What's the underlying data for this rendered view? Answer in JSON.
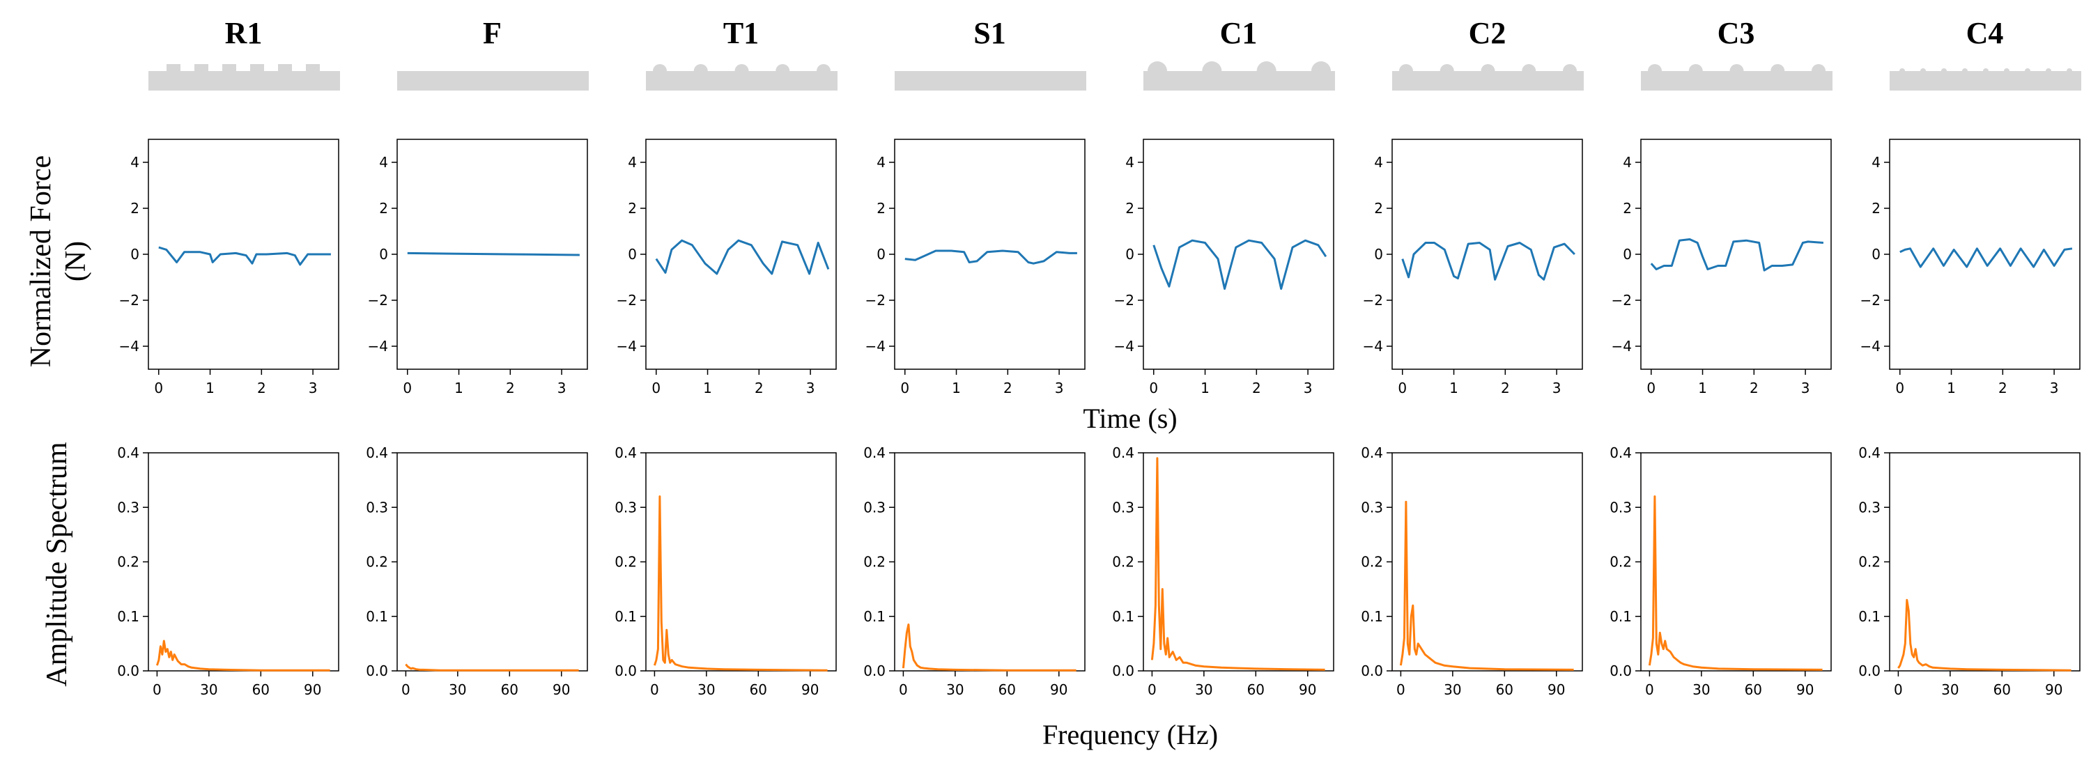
{
  "figure": {
    "time_label": "Time (s)",
    "freq_label": "Frequency (Hz)",
    "force_label_line1": "Normalized Force",
    "force_label_line2": "(N)",
    "amp_label": "Amplitude Spectrum"
  },
  "colors": {
    "force": "#1f77b4",
    "spectrum": "#ff7f0e",
    "profile": "#d6d6d6"
  },
  "force_axes": {
    "xlim": [
      -0.2,
      3.5
    ],
    "ylim": [
      -5,
      5
    ],
    "xticks": [
      0,
      1,
      2,
      3
    ],
    "yticks": [
      4,
      2,
      0,
      -2,
      -4
    ],
    "xtick_labels": [
      "0",
      "1",
      "2",
      "3"
    ],
    "ytick_labels": [
      "4",
      "2",
      "0",
      "−2",
      "−4"
    ]
  },
  "spectrum_axes": {
    "xlim": [
      -5,
      105
    ],
    "ylim": [
      0,
      0.4
    ],
    "xticks": [
      0,
      30,
      60,
      90
    ],
    "yticks": [
      0.4,
      0.3,
      0.2,
      0.1,
      0.0
    ],
    "xtick_labels": [
      "0",
      "30",
      "60",
      "90"
    ],
    "ytick_labels": [
      "0.4",
      "0.3",
      "0.2",
      "0.1",
      "0.0"
    ]
  },
  "chart_data": [
    {
      "type": "line",
      "label": "R1",
      "profile": "rect",
      "force": {
        "t": [
          0,
          0.15,
          0.35,
          0.5,
          0.8,
          1.0,
          1.05,
          1.2,
          1.5,
          1.7,
          1.82,
          1.9,
          2.1,
          2.5,
          2.65,
          2.75,
          2.9,
          3.1,
          3.35
        ],
        "y": [
          0.3,
          0.2,
          -0.35,
          0.1,
          0.1,
          0,
          -0.35,
          0,
          0.05,
          -0.05,
          -0.4,
          0,
          0,
          0.05,
          -0.05,
          -0.45,
          0,
          0,
          0
        ]
      },
      "spectrum": {
        "f": [
          0,
          1,
          2,
          3,
          4,
          5,
          6,
          7,
          8,
          9,
          10,
          12,
          14,
          16,
          18,
          20,
          25,
          30,
          40,
          60,
          80,
          100
        ],
        "a": [
          0.01,
          0.02,
          0.045,
          0.03,
          0.055,
          0.035,
          0.04,
          0.025,
          0.035,
          0.02,
          0.03,
          0.018,
          0.012,
          0.012,
          0.008,
          0.006,
          0.004,
          0.003,
          0.002,
          0.001,
          0.001,
          0.001
        ]
      }
    },
    {
      "type": "line",
      "label": "F",
      "profile": "flat",
      "force": {
        "t": [
          0,
          1,
          2,
          3,
          3.35
        ],
        "y": [
          0.05,
          0.02,
          0,
          -0.02,
          -0.03
        ]
      },
      "spectrum": {
        "f": [
          0,
          1,
          2,
          3,
          4,
          6,
          8,
          10,
          20,
          40,
          60,
          80,
          100
        ],
        "a": [
          0.012,
          0.008,
          0.006,
          0.004,
          0.005,
          0.003,
          0.002,
          0.002,
          0.001,
          0.001,
          0.001,
          0.001,
          0.001
        ]
      }
    },
    {
      "type": "line",
      "label": "T1",
      "profile": "bump",
      "force": {
        "t": [
          0,
          0.18,
          0.3,
          0.5,
          0.7,
          0.95,
          1.18,
          1.4,
          1.6,
          1.85,
          2.08,
          2.25,
          2.45,
          2.75,
          2.98,
          3.15,
          3.35
        ],
        "y": [
          -0.2,
          -0.8,
          0.2,
          0.6,
          0.4,
          -0.4,
          -0.85,
          0.2,
          0.6,
          0.4,
          -0.4,
          -0.85,
          0.55,
          0.4,
          -0.85,
          0.5,
          -0.65
        ]
      },
      "spectrum": {
        "f": [
          0,
          1,
          2,
          3,
          4,
          5,
          6,
          7,
          8,
          9,
          10,
          12,
          14,
          16,
          20,
          25,
          30,
          40,
          60,
          100
        ],
        "a": [
          0.01,
          0.02,
          0.04,
          0.32,
          0.09,
          0.02,
          0.015,
          0.075,
          0.03,
          0.015,
          0.02,
          0.012,
          0.01,
          0.008,
          0.006,
          0.005,
          0.004,
          0.003,
          0.002,
          0.001
        ]
      }
    },
    {
      "type": "line",
      "label": "S1",
      "profile": "flat",
      "force": {
        "t": [
          0,
          0.2,
          0.4,
          0.6,
          0.9,
          1.15,
          1.25,
          1.4,
          1.6,
          1.9,
          2.2,
          2.4,
          2.5,
          2.7,
          2.95,
          3.2,
          3.35
        ],
        "y": [
          -0.2,
          -0.25,
          -0.05,
          0.15,
          0.15,
          0.1,
          -0.35,
          -0.3,
          0.1,
          0.15,
          0.1,
          -0.35,
          -0.4,
          -0.3,
          0.1,
          0.05,
          0.05
        ]
      },
      "spectrum": {
        "f": [
          0,
          1,
          2,
          3,
          4,
          5,
          6,
          7,
          8,
          9,
          10,
          12,
          15,
          20,
          30,
          60,
          100
        ],
        "a": [
          0.005,
          0.04,
          0.07,
          0.085,
          0.045,
          0.035,
          0.02,
          0.015,
          0.01,
          0.008,
          0.006,
          0.005,
          0.004,
          0.003,
          0.002,
          0.001,
          0.001
        ]
      }
    },
    {
      "type": "line",
      "label": "C1",
      "profile": "bump",
      "force": {
        "t": [
          0,
          0.15,
          0.3,
          0.5,
          0.75,
          1.0,
          1.25,
          1.38,
          1.6,
          1.85,
          2.1,
          2.35,
          2.48,
          2.7,
          2.95,
          3.2,
          3.35
        ],
        "y": [
          0.4,
          -0.6,
          -1.4,
          0.3,
          0.6,
          0.5,
          -0.2,
          -1.5,
          0.3,
          0.6,
          0.5,
          -0.2,
          -1.5,
          0.3,
          0.6,
          0.4,
          -0.1
        ]
      },
      "spectrum": {
        "f": [
          0,
          1,
          2,
          3,
          4,
          5,
          6,
          7,
          8,
          9,
          10,
          12,
          14,
          16,
          18,
          20,
          25,
          30,
          40,
          50,
          60,
          80,
          100
        ],
        "a": [
          0.02,
          0.05,
          0.12,
          0.39,
          0.12,
          0.04,
          0.15,
          0.05,
          0.03,
          0.06,
          0.025,
          0.035,
          0.02,
          0.025,
          0.015,
          0.015,
          0.01,
          0.008,
          0.006,
          0.005,
          0.004,
          0.003,
          0.002
        ]
      }
    },
    {
      "type": "line",
      "label": "C2",
      "profile": "bump",
      "force": {
        "t": [
          0,
          0.12,
          0.22,
          0.45,
          0.62,
          0.82,
          1.0,
          1.08,
          1.28,
          1.5,
          1.7,
          1.8,
          2.05,
          2.28,
          2.5,
          2.65,
          2.75,
          2.95,
          3.15,
          3.35
        ],
        "y": [
          -0.2,
          -1.0,
          0.0,
          0.5,
          0.5,
          0.2,
          -0.95,
          -1.05,
          0.45,
          0.5,
          0.2,
          -1.1,
          0.35,
          0.5,
          0.2,
          -0.9,
          -1.1,
          0.3,
          0.45,
          0.0
        ]
      },
      "spectrum": {
        "f": [
          0,
          1,
          2,
          3,
          4,
          5,
          6,
          7,
          8,
          9,
          10,
          12,
          14,
          16,
          18,
          20,
          25,
          30,
          40,
          60,
          100
        ],
        "a": [
          0.01,
          0.03,
          0.06,
          0.31,
          0.05,
          0.03,
          0.1,
          0.12,
          0.04,
          0.03,
          0.05,
          0.04,
          0.03,
          0.025,
          0.02,
          0.015,
          0.01,
          0.008,
          0.005,
          0.003,
          0.002
        ]
      }
    },
    {
      "type": "line",
      "label": "C3",
      "profile": "bump",
      "force": {
        "t": [
          0,
          0.1,
          0.25,
          0.4,
          0.55,
          0.75,
          0.9,
          1.0,
          1.1,
          1.3,
          1.45,
          1.6,
          1.85,
          2.1,
          2.2,
          2.35,
          2.55,
          2.75,
          2.95,
          3.05,
          3.35
        ],
        "y": [
          -0.4,
          -0.65,
          -0.5,
          -0.5,
          0.6,
          0.65,
          0.5,
          -0.1,
          -0.65,
          -0.5,
          -0.5,
          0.55,
          0.6,
          0.5,
          -0.7,
          -0.5,
          -0.5,
          -0.45,
          0.5,
          0.55,
          0.5
        ]
      },
      "spectrum": {
        "f": [
          0,
          1,
          2,
          3,
          4,
          5,
          6,
          7,
          8,
          9,
          10,
          12,
          14,
          16,
          18,
          20,
          25,
          30,
          40,
          60,
          100
        ],
        "a": [
          0.01,
          0.03,
          0.06,
          0.32,
          0.05,
          0.03,
          0.07,
          0.05,
          0.04,
          0.055,
          0.04,
          0.035,
          0.025,
          0.02,
          0.015,
          0.012,
          0.008,
          0.006,
          0.004,
          0.003,
          0.002
        ]
      }
    },
    {
      "type": "line",
      "label": "C4",
      "profile": "dots",
      "force": {
        "t": [
          0,
          0.1,
          0.2,
          0.4,
          0.65,
          0.85,
          1.05,
          1.3,
          1.5,
          1.7,
          1.95,
          2.15,
          2.35,
          2.6,
          2.8,
          3.0,
          3.2,
          3.35
        ],
        "y": [
          0.1,
          0.2,
          0.25,
          -0.55,
          0.25,
          -0.5,
          0.2,
          -0.55,
          0.25,
          -0.5,
          0.25,
          -0.5,
          0.25,
          -0.55,
          0.2,
          -0.5,
          0.2,
          0.25
        ]
      },
      "spectrum": {
        "f": [
          0,
          1,
          2,
          3,
          4,
          5,
          6,
          7,
          8,
          9,
          10,
          11,
          12,
          14,
          16,
          18,
          20,
          25,
          30,
          40,
          60,
          100
        ],
        "a": [
          0.005,
          0.01,
          0.02,
          0.03,
          0.05,
          0.13,
          0.11,
          0.05,
          0.03,
          0.025,
          0.04,
          0.02,
          0.015,
          0.01,
          0.012,
          0.008,
          0.006,
          0.005,
          0.004,
          0.003,
          0.002,
          0.001
        ]
      }
    }
  ]
}
